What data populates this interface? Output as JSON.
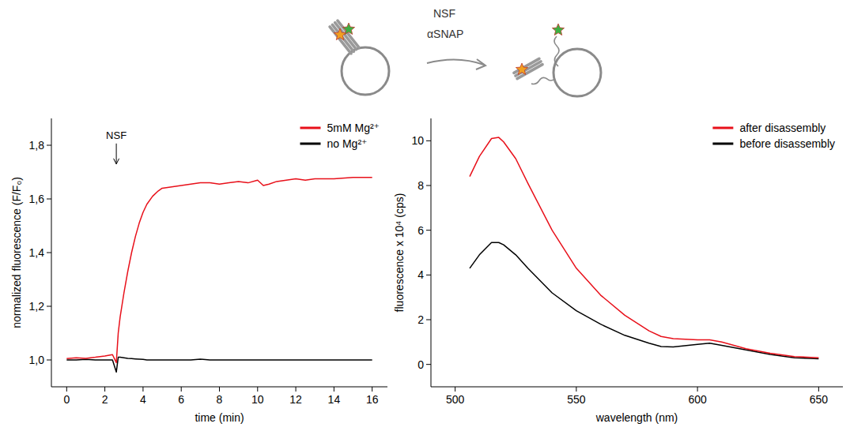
{
  "schematic": {
    "labels": [
      "NSF",
      "αSNAP"
    ]
  },
  "chart_data": [
    {
      "type": "line",
      "x_label": "time (min)",
      "y_label": "normalized fluorescence (F/F₀)",
      "xlim": [
        -0.8,
        16.8
      ],
      "ylim": [
        0.9,
        1.9
      ],
      "xticks": [
        0,
        2,
        4,
        6,
        8,
        10,
        12,
        14,
        16
      ],
      "yticks": [
        {
          "value": 1.0,
          "label": "1,0"
        },
        {
          "value": 1.2,
          "label": "1,2"
        },
        {
          "value": 1.4,
          "label": "1,4"
        },
        {
          "value": 1.6,
          "label": "1,6"
        },
        {
          "value": 1.8,
          "label": "1,8"
        }
      ],
      "legend": "upper right",
      "annotations": [
        {
          "text": "NSF",
          "x": 2.6,
          "y": 1.73
        }
      ],
      "x": [
        0,
        0.5,
        1,
        1.5,
        2,
        2.4,
        2.6,
        2.7,
        2.8,
        3,
        3.2,
        3.4,
        3.6,
        3.8,
        4,
        4.2,
        4.5,
        4.8,
        5,
        5.5,
        6,
        6.5,
        7,
        7.5,
        8,
        8.5,
        9,
        9.5,
        10,
        10.3,
        10.6,
        11,
        11.5,
        12,
        12.5,
        13,
        14,
        15,
        16
      ],
      "series": [
        {
          "name": "5mM Mg²⁺",
          "color": "#e8101a",
          "values": [
            1.005,
            1.008,
            1.006,
            1.01,
            1.015,
            1.02,
            0.99,
            1.1,
            1.16,
            1.25,
            1.33,
            1.4,
            1.46,
            1.51,
            1.55,
            1.58,
            1.61,
            1.63,
            1.64,
            1.645,
            1.65,
            1.655,
            1.66,
            1.66,
            1.655,
            1.66,
            1.665,
            1.66,
            1.67,
            1.65,
            1.655,
            1.665,
            1.67,
            1.675,
            1.67,
            1.675,
            1.675,
            1.68,
            1.68
          ]
        },
        {
          "name": "no Mg²⁺",
          "color": "#000000",
          "values": [
            1.0,
            1.0,
            1.002,
            1.0,
            1.0,
            1.0,
            0.955,
            1.01,
            1.01,
            1.008,
            1.006,
            1.005,
            1.004,
            1.003,
            1.002,
            1.0,
            1.0,
            1.0,
            1.0,
            1.0,
            1.0,
            1.0,
            1.003,
            1.0,
            1.0,
            1.0,
            1.0,
            1.0,
            1.0,
            1.0,
            1.0,
            1.0,
            1.0,
            1.0,
            1.0,
            1.0,
            1.0,
            1.0,
            1.0
          ]
        }
      ]
    },
    {
      "type": "line",
      "x_label": "wavelength (nm)",
      "y_label": "fluorescence x 10⁴ (cps)",
      "xlim": [
        490,
        660
      ],
      "ylim": [
        -1,
        11
      ],
      "xticks": [
        500,
        550,
        600,
        650
      ],
      "yticks": [
        0,
        2,
        4,
        6,
        8,
        10
      ],
      "legend": "upper right",
      "x": [
        506,
        510,
        515,
        518,
        520,
        525,
        530,
        540,
        550,
        560,
        570,
        580,
        585,
        590,
        600,
        605,
        610,
        620,
        630,
        640,
        650
      ],
      "series": [
        {
          "name": "after disassembly",
          "color": "#e8101a",
          "values": [
            8.4,
            9.3,
            10.1,
            10.15,
            9.95,
            9.2,
            8.1,
            6.0,
            4.3,
            3.1,
            2.2,
            1.5,
            1.25,
            1.15,
            1.1,
            1.1,
            1.0,
            0.7,
            0.5,
            0.35,
            0.3
          ]
        },
        {
          "name": "before disassembly",
          "color": "#000000",
          "values": [
            4.3,
            4.9,
            5.45,
            5.45,
            5.35,
            4.9,
            4.3,
            3.2,
            2.4,
            1.8,
            1.3,
            0.95,
            0.8,
            0.78,
            0.9,
            0.95,
            0.85,
            0.65,
            0.45,
            0.3,
            0.25
          ]
        }
      ]
    }
  ]
}
